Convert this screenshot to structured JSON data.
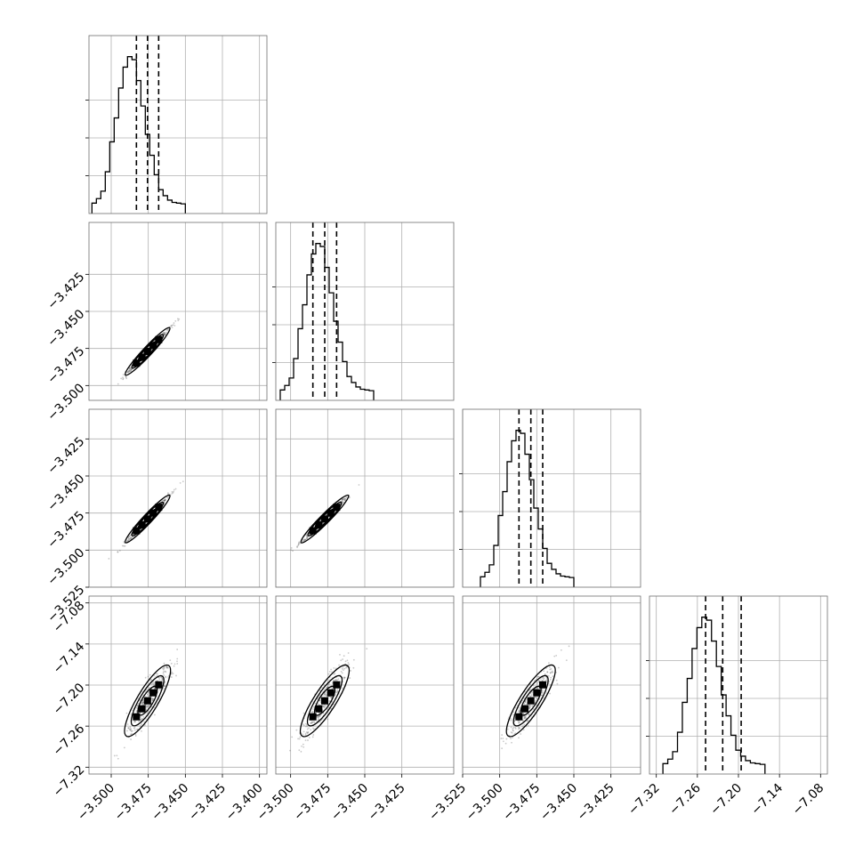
{
  "chart_data": {
    "type": "corner",
    "title": "",
    "grid": true,
    "variables": [
      {
        "index": 0,
        "range": [
          -3.515,
          -3.395
        ]
      },
      {
        "index": 1,
        "range": [
          -3.51,
          -3.39
        ],
        "y_ticks": [
          "−3.500",
          "−3.475",
          "−3.450",
          "−3.425"
        ]
      },
      {
        "index": 2,
        "range": [
          -3.525,
          -3.405
        ],
        "y_ticks": [
          "−3.525",
          "−3.500",
          "−3.475",
          "−3.450",
          "−3.425"
        ]
      },
      {
        "index": 3,
        "range": [
          -7.33,
          -7.07
        ],
        "y_ticks": [
          "−7.32",
          "−7.26",
          "−7.20",
          "−7.14",
          "−7.08"
        ]
      }
    ],
    "x_tick_labels": [
      [
        "−3.500",
        "−3.475",
        "−3.450",
        "−3.425",
        "−3.400"
      ],
      [
        "−3.500",
        "−3.475",
        "−3.450",
        "−3.425"
      ],
      [
        "−3.525",
        "−3.500",
        "−3.475",
        "−3.450",
        "−3.425"
      ],
      [
        "−7.32",
        "−7.26",
        "−7.20",
        "−7.14",
        "−7.08"
      ]
    ],
    "tick_values": [
      [
        -3.5,
        -3.475,
        -3.45,
        -3.425,
        -3.4
      ],
      [
        -3.5,
        -3.475,
        -3.45,
        -3.425
      ],
      [
        -3.525,
        -3.5,
        -3.475,
        -3.45,
        -3.425
      ],
      [
        -7.32,
        -7.26,
        -7.2,
        -7.14,
        -7.08
      ]
    ],
    "marginals": [
      {
        "variable": 0,
        "quantiles": [
          -3.483,
          -3.4755,
          -3.468
        ],
        "bins": [
          [
            -3.5115,
            0.01
          ],
          [
            -3.5085,
            0.04
          ],
          [
            -3.5055,
            0.09
          ],
          [
            -3.5025,
            0.22
          ],
          [
            -3.4995,
            0.42
          ],
          [
            -3.4965,
            0.58
          ],
          [
            -3.4935,
            0.78
          ],
          [
            -3.4905,
            0.92
          ],
          [
            -3.4875,
            0.99
          ],
          [
            -3.4845,
            0.97
          ],
          [
            -3.4815,
            0.83
          ],
          [
            -3.4785,
            0.66
          ],
          [
            -3.4755,
            0.47
          ],
          [
            -3.4725,
            0.33
          ],
          [
            -3.4695,
            0.2
          ],
          [
            -3.4665,
            0.1
          ],
          [
            -3.4635,
            0.06
          ],
          [
            -3.4605,
            0.03
          ],
          [
            -3.4575,
            0.015
          ],
          [
            -3.4545,
            0.01
          ],
          [
            -3.4515,
            0.005
          ]
        ]
      },
      {
        "variable": 1,
        "quantiles": [
          -3.485,
          -3.477,
          -3.469
        ],
        "bins": [
          [
            -3.5055,
            0.01
          ],
          [
            -3.5025,
            0.04
          ],
          [
            -3.4995,
            0.09
          ],
          [
            -3.4965,
            0.22
          ],
          [
            -3.4935,
            0.42
          ],
          [
            -3.4905,
            0.58
          ],
          [
            -3.4875,
            0.78
          ],
          [
            -3.4845,
            0.92
          ],
          [
            -3.4815,
            0.99
          ],
          [
            -3.4785,
            0.97
          ],
          [
            -3.4755,
            0.83
          ],
          [
            -3.4725,
            0.66
          ],
          [
            -3.4695,
            0.47
          ],
          [
            -3.4665,
            0.33
          ],
          [
            -3.4635,
            0.2
          ],
          [
            -3.4605,
            0.1
          ],
          [
            -3.4575,
            0.06
          ],
          [
            -3.4545,
            0.03
          ],
          [
            -3.4515,
            0.015
          ],
          [
            -3.4485,
            0.01
          ],
          [
            -3.4455,
            0.005
          ]
        ]
      },
      {
        "variable": 2,
        "quantiles": [
          -3.487,
          -3.479,
          -3.471
        ],
        "bins": [
          [
            -3.5115,
            0.01
          ],
          [
            -3.5085,
            0.04
          ],
          [
            -3.5055,
            0.09
          ],
          [
            -3.5025,
            0.22
          ],
          [
            -3.4995,
            0.42
          ],
          [
            -3.4965,
            0.58
          ],
          [
            -3.4935,
            0.78
          ],
          [
            -3.4905,
            0.92
          ],
          [
            -3.4875,
            0.99
          ],
          [
            -3.4845,
            0.97
          ],
          [
            -3.4815,
            0.83
          ],
          [
            -3.4785,
            0.66
          ],
          [
            -3.4755,
            0.47
          ],
          [
            -3.4725,
            0.33
          ],
          [
            -3.4695,
            0.2
          ],
          [
            -3.4665,
            0.1
          ],
          [
            -3.4635,
            0.06
          ],
          [
            -3.4605,
            0.03
          ],
          [
            -3.4575,
            0.015
          ],
          [
            -3.4545,
            0.01
          ],
          [
            -3.4515,
            0.005
          ]
        ]
      },
      {
        "variable": 3,
        "quantiles": [
          -7.248,
          -7.223,
          -7.196
        ],
        "bins": [
          [
            -7.3068,
            0.01
          ],
          [
            -7.2997,
            0.04
          ],
          [
            -7.2926,
            0.09
          ],
          [
            -7.2855,
            0.22
          ],
          [
            -7.2784,
            0.42
          ],
          [
            -7.2713,
            0.58
          ],
          [
            -7.2642,
            0.78
          ],
          [
            -7.2571,
            0.92
          ],
          [
            -7.25,
            0.99
          ],
          [
            -7.2429,
            0.97
          ],
          [
            -7.2358,
            0.83
          ],
          [
            -7.2287,
            0.66
          ],
          [
            -7.2216,
            0.47
          ],
          [
            -7.2145,
            0.33
          ],
          [
            -7.2074,
            0.2
          ],
          [
            -7.2003,
            0.1
          ],
          [
            -7.1932,
            0.06
          ],
          [
            -7.1861,
            0.03
          ],
          [
            -7.179,
            0.015
          ],
          [
            -7.1719,
            0.01
          ],
          [
            -7.1648,
            0.005
          ]
        ]
      }
    ],
    "joint_panels": [
      {
        "x_var": 0,
        "y_var": 1,
        "correlation": 0.99
      },
      {
        "x_var": 0,
        "y_var": 2,
        "correlation": 0.99
      },
      {
        "x_var": 1,
        "y_var": 2,
        "correlation": 0.99
      },
      {
        "x_var": 0,
        "y_var": 3,
        "correlation": 0.9
      },
      {
        "x_var": 1,
        "y_var": 3,
        "correlation": 0.9
      },
      {
        "x_var": 2,
        "y_var": 3,
        "correlation": 0.9
      }
    ],
    "colors": {
      "line": "#000000",
      "grid": "#b0b0b0",
      "frame": "#6f6f6f",
      "points": "#666666"
    }
  }
}
